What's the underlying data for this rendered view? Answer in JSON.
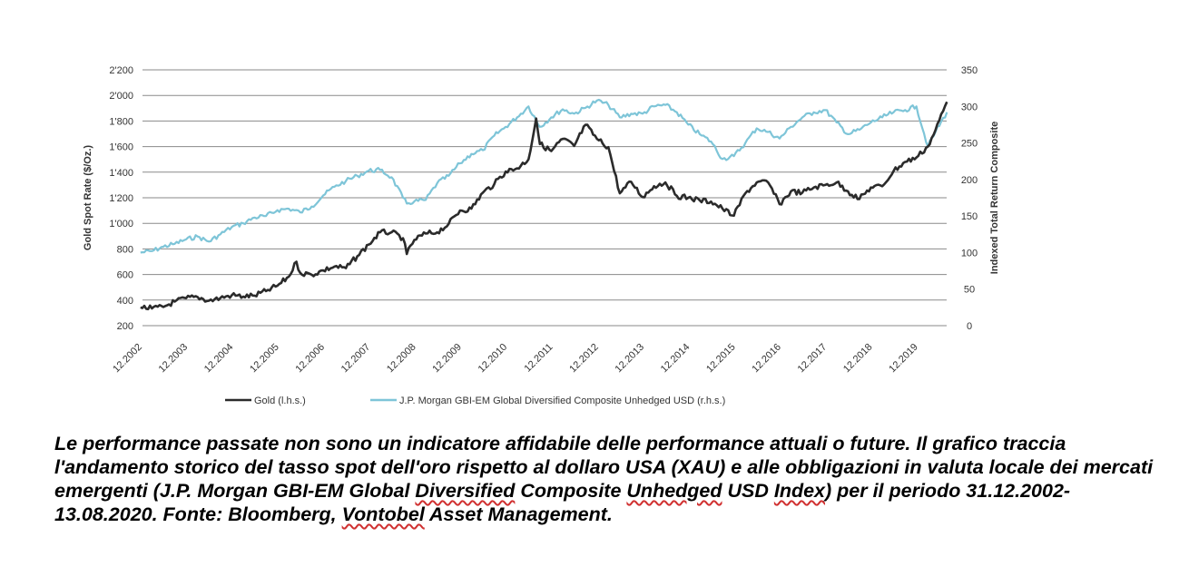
{
  "chart_data": {
    "type": "line",
    "title": "",
    "ylabel": "Gold Spot Rate ($/Oz.)",
    "y2label": "Indexed Total Return Composite",
    "ylim": [
      200,
      2200
    ],
    "y2lim": [
      0,
      350
    ],
    "yticks": [
      "2'200",
      "2'000",
      "1'800",
      "1'600",
      "1'400",
      "1'200",
      "1'000",
      "800",
      "600",
      "400",
      "200"
    ],
    "y2ticks": [
      "350",
      "300",
      "250",
      "200",
      "150",
      "100",
      "50",
      "0"
    ],
    "xticks": [
      "12.2002",
      "12.2003",
      "12.2004",
      "12.2005",
      "12.2006",
      "12.2007",
      "12.2008",
      "12.2009",
      "12.2010",
      "12.2011",
      "12.2012",
      "12.2013",
      "12.2014",
      "12.2015",
      "12.2016",
      "12.2017",
      "12.2018",
      "12.2019"
    ],
    "xlim": [
      "2002-12-31",
      "2020-08-13"
    ],
    "grid": true,
    "legend_position": "bottom",
    "colors": {
      "gold": "#2b2b2b",
      "gbi": "#7ec5d8",
      "grid": "#8a8a8a"
    },
    "series": [
      {
        "name": "Gold (l.h.s.)",
        "axis": "left",
        "x": [
          "2002-12",
          "2003-03",
          "2003-06",
          "2003-09",
          "2003-12",
          "2004-03",
          "2004-06",
          "2004-09",
          "2004-12",
          "2005-03",
          "2005-06",
          "2005-09",
          "2005-12",
          "2006-03",
          "2006-05",
          "2006-06",
          "2006-09",
          "2006-12",
          "2007-03",
          "2007-06",
          "2007-09",
          "2007-12",
          "2008-03",
          "2008-06",
          "2008-09",
          "2008-10",
          "2008-12",
          "2009-03",
          "2009-06",
          "2009-09",
          "2009-12",
          "2010-03",
          "2010-06",
          "2010-09",
          "2010-12",
          "2011-03",
          "2011-06",
          "2011-08",
          "2011-09",
          "2011-12",
          "2012-03",
          "2012-06",
          "2012-09",
          "2012-12",
          "2013-03",
          "2013-06",
          "2013-09",
          "2013-12",
          "2014-03",
          "2014-06",
          "2014-09",
          "2014-12",
          "2015-03",
          "2015-06",
          "2015-09",
          "2015-12",
          "2016-03",
          "2016-06",
          "2016-09",
          "2016-12",
          "2017-03",
          "2017-06",
          "2017-09",
          "2017-12",
          "2018-03",
          "2018-06",
          "2018-09",
          "2018-12",
          "2019-03",
          "2019-06",
          "2019-09",
          "2019-12",
          "2020-03",
          "2020-05",
          "2020-08"
        ],
        "values": [
          343,
          335,
          346,
          388,
          415,
          424,
          395,
          416,
          438,
          428,
          435,
          470,
          513,
          583,
          700,
          613,
          598,
          632,
          662,
          650,
          743,
          834,
          930,
          930,
          884,
          760,
          870,
          920,
          930,
          995,
          1100,
          1115,
          1240,
          1307,
          1405,
          1430,
          1500,
          1820,
          1620,
          1565,
          1660,
          1605,
          1770,
          1660,
          1595,
          1235,
          1325,
          1205,
          1290,
          1320,
          1215,
          1200,
          1180,
          1170,
          1115,
          1060,
          1235,
          1320,
          1320,
          1150,
          1250,
          1240,
          1280,
          1300,
          1320,
          1250,
          1190,
          1280,
          1290,
          1410,
          1480,
          1515,
          1600,
          1730,
          1950
        ]
      },
      {
        "name": "J.P. Morgan GBI-EM Global Diversified Composite Unhedged USD (r.h.s.)",
        "axis": "right",
        "x": [
          "2002-12",
          "2003-03",
          "2003-06",
          "2003-09",
          "2003-12",
          "2004-03",
          "2004-06",
          "2004-09",
          "2004-12",
          "2005-03",
          "2005-06",
          "2005-09",
          "2005-12",
          "2006-03",
          "2006-06",
          "2006-09",
          "2006-12",
          "2007-03",
          "2007-06",
          "2007-09",
          "2007-12",
          "2008-03",
          "2008-06",
          "2008-09",
          "2008-10",
          "2008-12",
          "2009-03",
          "2009-06",
          "2009-09",
          "2009-12",
          "2010-03",
          "2010-06",
          "2010-09",
          "2010-12",
          "2011-03",
          "2011-06",
          "2011-09",
          "2011-12",
          "2012-03",
          "2012-06",
          "2012-09",
          "2012-12",
          "2013-03",
          "2013-06",
          "2013-09",
          "2013-12",
          "2014-03",
          "2014-06",
          "2014-09",
          "2014-12",
          "2015-03",
          "2015-06",
          "2015-09",
          "2015-12",
          "2016-03",
          "2016-06",
          "2016-09",
          "2016-12",
          "2017-03",
          "2017-06",
          "2017-09",
          "2017-12",
          "2018-03",
          "2018-06",
          "2018-09",
          "2018-12",
          "2019-03",
          "2019-06",
          "2019-09",
          "2019-12",
          "2020-03",
          "2020-05",
          "2020-08"
        ],
        "values": [
          100,
          102,
          108,
          112,
          118,
          122,
          115,
          125,
          135,
          140,
          148,
          150,
          158,
          160,
          155,
          163,
          178,
          190,
          198,
          205,
          212,
          213,
          203,
          175,
          167,
          170,
          172,
          195,
          205,
          222,
          235,
          240,
          260,
          272,
          285,
          300,
          272,
          285,
          296,
          290,
          298,
          308,
          302,
          285,
          290,
          290,
          300,
          302,
          292,
          275,
          262,
          252,
          228,
          232,
          250,
          270,
          265,
          256,
          272,
          285,
          292,
          295,
          278,
          262,
          268,
          278,
          285,
          292,
          295,
          300,
          245,
          265,
          292
        ]
      }
    ]
  },
  "caption": {
    "part1": "Le performance passate non sono un indicatore affidabile delle performance attuali o future. Il grafico traccia l'andamento storico del tasso spot dell'oro rispetto al dollaro USA (XAU) e alle obbligazioni in valuta locale dei mercati emergenti (J.P. Morgan GBI-EM Global ",
    "word1": "Diversified",
    "part2": " Composite ",
    "word2": "Unhedged",
    "part3": " USD ",
    "word3": "Index",
    "part4": ") per il periodo 31.12.2002-13.08.2020. Fonte: Bloomberg, ",
    "word4": "Vontobel",
    "part5": " Asset Management."
  }
}
